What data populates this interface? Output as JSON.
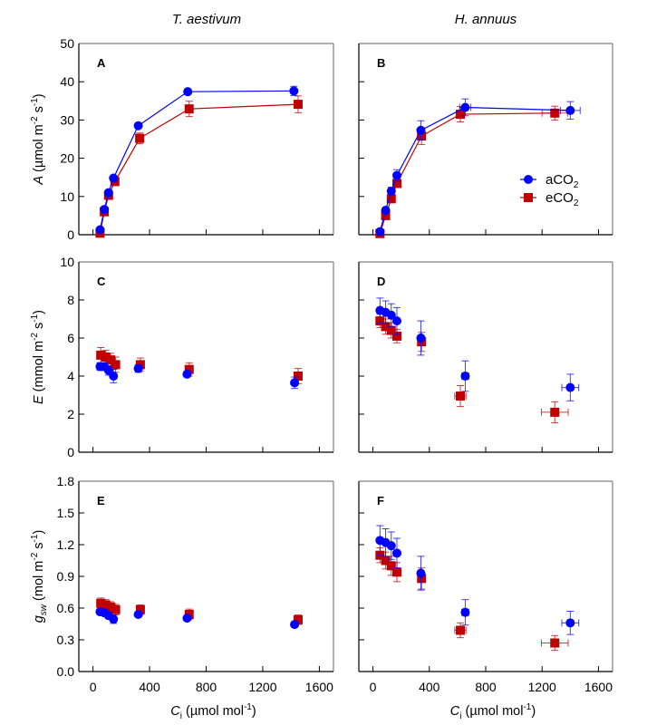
{
  "chart_data": {
    "type": "scatter",
    "column_titles": [
      "T. aestivum",
      "H. annuus"
    ],
    "xlabel": "Ci (µmol mol-1)",
    "xlabel_parts": {
      "main": "C",
      "sub": "i",
      "unit_pre": " (µmol mol",
      "unit_sup": "-1",
      "unit_post": ")"
    },
    "xlim": [
      -100,
      1700
    ],
    "xticks": [
      0,
      400,
      800,
      1200,
      1600
    ],
    "legend": {
      "position": "center-right of panel B",
      "entries": [
        {
          "name": "aCO2",
          "base": "aCO",
          "sub": "2",
          "color": "#0000ff",
          "marker": "circle"
        },
        {
          "name": "eCO2",
          "base": "eCO",
          "sub": "2",
          "color": "#c00000",
          "marker": "square"
        }
      ]
    },
    "rows": [
      {
        "ylabel": "A (µmol m-2 s-1)",
        "ylabel_parts": {
          "var": "A",
          "pre": " (µmol m",
          "sup1": "-2",
          "mid": " s",
          "sup2": "-1",
          "post": ")"
        },
        "ylim": [
          0,
          50
        ],
        "yticks": [
          0,
          10,
          20,
          30,
          40,
          50
        ],
        "ytick_labels": [
          "0",
          "10",
          "20",
          "30",
          "40",
          "50"
        ],
        "connect_lines": true,
        "panels": [
          {
            "label": "A",
            "series": [
              {
                "name": "aCO2",
                "x": [
                  50,
                  80,
                  110,
                  145,
                  320,
                  670,
                  1420
                ],
                "y": [
                  1.3,
                  6.6,
                  11.0,
                  14.8,
                  28.5,
                  37.4,
                  37.6
                ],
                "yerr": [
                  0.3,
                  0.5,
                  0.5,
                  0.5,
                  0.6,
                  0.6,
                  1.2
                ],
                "xerr": [
                  0,
                  0,
                  0,
                  0,
                  0,
                  0,
                  0
                ]
              },
              {
                "name": "eCO2",
                "x": [
                  50,
                  80,
                  110,
                  155,
                  330,
                  680,
                  1450
                ],
                "y": [
                  0.4,
                  6.0,
                  10.3,
                  13.9,
                  25.2,
                  32.9,
                  34.1
                ],
                "yerr": [
                  0.3,
                  0.5,
                  0.6,
                  0.6,
                  1.4,
                  2.0,
                  2.2
                ],
                "xerr": [
                  0,
                  0,
                  0,
                  0,
                  0,
                  0,
                  0
                ]
              }
            ]
          },
          {
            "label": "B",
            "series": [
              {
                "name": "aCO2",
                "x": [
                  50,
                  90,
                  130,
                  170,
                  340,
                  655,
                  1400
                ],
                "y": [
                  0.8,
                  6.4,
                  11.4,
                  15.5,
                  27.3,
                  33.3,
                  32.5
                ],
                "yerr": [
                  0.4,
                  0.6,
                  1.0,
                  1.5,
                  2.5,
                  2.2,
                  2.3
                ],
                "xerr": [
                  0,
                  0,
                  0,
                  0,
                  0,
                  40,
                  70
                ]
              },
              {
                "name": "eCO2",
                "x": [
                  50,
                  90,
                  130,
                  170,
                  345,
                  620,
                  1290
                ],
                "y": [
                  0.3,
                  5.0,
                  9.4,
                  13.4,
                  25.8,
                  31.5,
                  31.8
                ],
                "yerr": [
                  0.3,
                  0.6,
                  0.8,
                  1.0,
                  2.2,
                  2.0,
                  1.8
                ],
                "xerr": [
                  0,
                  0,
                  0,
                  0,
                  0,
                  30,
                  90
                ]
              }
            ]
          }
        ]
      },
      {
        "ylabel": "E (mmol m-2 s-1)",
        "ylabel_parts": {
          "var": "E",
          "pre": " (mmol m",
          "sup1": "-2",
          "mid": " s",
          "sup2": "-1",
          "post": ")"
        },
        "ylim": [
          0,
          10
        ],
        "yticks": [
          0,
          2,
          4,
          6,
          8,
          10
        ],
        "ytick_labels": [
          "0",
          "2",
          "4",
          "6",
          "8",
          "10"
        ],
        "connect_lines": false,
        "panels": [
          {
            "label": "C",
            "series": [
              {
                "name": "aCO2",
                "x": [
                  50,
                  80,
                  110,
                  145,
                  320,
                  665,
                  1425
                ],
                "y": [
                  4.5,
                  4.5,
                  4.3,
                  4.0,
                  4.4,
                  4.1,
                  3.65
                ],
                "yerr": [
                  0.2,
                  0.2,
                  0.25,
                  0.35,
                  0.2,
                  0.15,
                  0.3
                ],
                "xerr": [
                  0,
                  0,
                  0,
                  0,
                  0,
                  0,
                  0
                ]
              },
              {
                "name": "eCO2",
                "x": [
                  55,
                  90,
                  125,
                  160,
                  335,
                  680,
                  1450
                ],
                "y": [
                  5.1,
                  5.0,
                  4.85,
                  4.6,
                  4.6,
                  4.35,
                  4.0
                ],
                "yerr": [
                  0.4,
                  0.35,
                  0.35,
                  0.4,
                  0.35,
                  0.35,
                  0.4
                ],
                "xerr": [
                  0,
                  0,
                  0,
                  0,
                  0,
                  0,
                  0
                ]
              }
            ]
          },
          {
            "label": "D",
            "series": [
              {
                "name": "aCO2",
                "x": [
                  50,
                  90,
                  130,
                  170,
                  340,
                  655,
                  1400
                ],
                "y": [
                  7.45,
                  7.35,
                  7.2,
                  6.9,
                  6.0,
                  4.0,
                  3.4
                ],
                "yerr": [
                  0.65,
                  0.6,
                  0.6,
                  0.7,
                  0.9,
                  0.8,
                  0.7
                ],
                "xerr": [
                  0,
                  0,
                  0,
                  0,
                  0,
                  25,
                  60
                ]
              },
              {
                "name": "eCO2",
                "x": [
                  50,
                  90,
                  130,
                  170,
                  345,
                  620,
                  1290
                ],
                "y": [
                  6.9,
                  6.6,
                  6.4,
                  6.1,
                  5.8,
                  2.95,
                  2.1
                ],
                "yerr": [
                  0.35,
                  0.4,
                  0.4,
                  0.35,
                  0.5,
                  0.55,
                  0.55
                ],
                "xerr": [
                  0,
                  0,
                  0,
                  0,
                  0,
                  40,
                  95
                ]
              }
            ]
          }
        ]
      },
      {
        "ylabel": "gsw (mol m-2 s-1)",
        "ylabel_parts": {
          "var": "g",
          "sub": "sw",
          "pre": " (mol m",
          "sup1": "-2",
          "mid": " s",
          "sup2": "-1",
          "post": ")"
        },
        "ylim": [
          0,
          1.8
        ],
        "yticks": [
          0,
          0.3,
          0.6,
          0.9,
          1.2,
          1.5,
          1.8
        ],
        "ytick_labels": [
          "0.0",
          "0.3",
          "0.6",
          "0.9",
          "1.2",
          "1.5",
          "1.8"
        ],
        "connect_lines": false,
        "panels": [
          {
            "label": "E",
            "series": [
              {
                "name": "aCO2",
                "x": [
                  50,
                  80,
                  110,
                  145,
                  320,
                  665,
                  1425
                ],
                "y": [
                  0.565,
                  0.555,
                  0.53,
                  0.495,
                  0.54,
                  0.505,
                  0.445
                ],
                "yerr": [
                  0.02,
                  0.02,
                  0.03,
                  0.04,
                  0.02,
                  0.02,
                  0.02
                ],
                "xerr": [
                  0,
                  0,
                  0,
                  0,
                  0,
                  0,
                  0
                ]
              },
              {
                "name": "eCO2",
                "x": [
                  55,
                  90,
                  125,
                  160,
                  335,
                  680,
                  1450
                ],
                "y": [
                  0.645,
                  0.63,
                  0.61,
                  0.585,
                  0.585,
                  0.54,
                  0.49
                ],
                "yerr": [
                  0.05,
                  0.05,
                  0.05,
                  0.05,
                  0.045,
                  0.05,
                  0.045
                ],
                "xerr": [
                  0,
                  0,
                  0,
                  0,
                  0,
                  0,
                  0
                ]
              }
            ]
          },
          {
            "label": "F",
            "series": [
              {
                "name": "aCO2",
                "x": [
                  50,
                  90,
                  130,
                  170,
                  340,
                  655,
                  1400
                ],
                "y": [
                  1.24,
                  1.22,
                  1.19,
                  1.12,
                  0.93,
                  0.56,
                  0.46
                ],
                "yerr": [
                  0.14,
                  0.13,
                  0.13,
                  0.14,
                  0.16,
                  0.12,
                  0.11
                ],
                "xerr": [
                  0,
                  0,
                  0,
                  0,
                  0,
                  25,
                  60
                ]
              },
              {
                "name": "eCO2",
                "x": [
                  50,
                  90,
                  130,
                  170,
                  345,
                  620,
                  1290
                ],
                "y": [
                  1.1,
                  1.05,
                  1.0,
                  0.94,
                  0.88,
                  0.39,
                  0.27
                ],
                "yerr": [
                  0.07,
                  0.08,
                  0.09,
                  0.09,
                  0.1,
                  0.07,
                  0.07
                ],
                "xerr": [
                  0,
                  0,
                  0,
                  0,
                  0,
                  40,
                  95
                ]
              }
            ]
          }
        ]
      }
    ]
  }
}
